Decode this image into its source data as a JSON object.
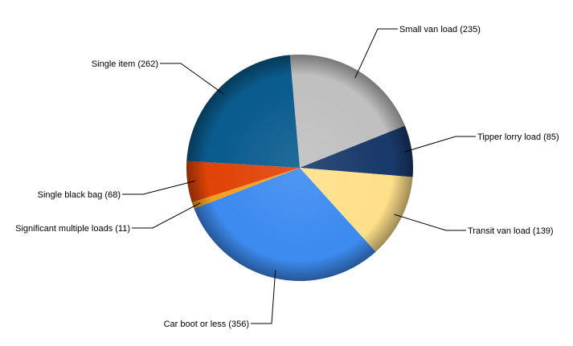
{
  "chart_data": {
    "type": "pie",
    "title": "",
    "slices": [
      {
        "label": "Small van load (235)",
        "value": 235,
        "color": "#c0c0c0"
      },
      {
        "label": "Tipper lorry load (85)",
        "value": 85,
        "color": "#1a3a6b"
      },
      {
        "label": "Transit van load (139)",
        "value": 139,
        "color": "#ffe08a"
      },
      {
        "label": "Car boot or less (356)",
        "value": 356,
        "color": "#3d8bf0"
      },
      {
        "label": "Significant multiple loads (11)",
        "value": 11,
        "color": "#f5a020"
      },
      {
        "label": "Single black bag (68)",
        "value": 68,
        "color": "#e04408"
      },
      {
        "label": "Single item (262)",
        "value": 262,
        "color": "#0a5c8e"
      }
    ]
  }
}
